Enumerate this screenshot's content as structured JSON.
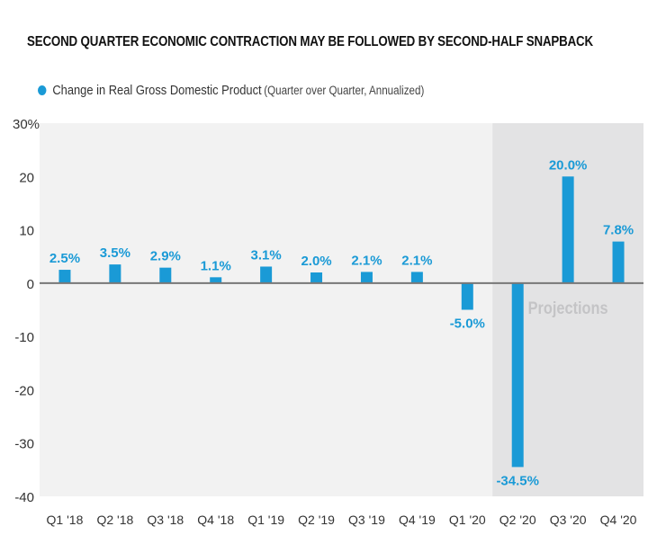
{
  "chart_data": {
    "type": "bar",
    "title": "SECOND QUARTER ECONOMIC CONTRACTION MAY BE FOLLOWED BY SECOND-HALF SNAPBACK",
    "legend": {
      "position": "top-left",
      "entries": [
        {
          "name": "Change in Real Gross Domestic Product",
          "note": "(Quarter over Quarter, Annualized)"
        }
      ]
    },
    "categories": [
      "Q1 '18",
      "Q2 '18",
      "Q3 '18",
      "Q4 '18",
      "Q1 '19",
      "Q2 '19",
      "Q3 '19",
      "Q4 '19",
      "Q1 '20",
      "Q2 '20",
      "Q3 '20",
      "Q4 '20"
    ],
    "series": [
      {
        "name": "Change in Real Gross Domestic Product",
        "values": [
          2.5,
          3.5,
          2.9,
          1.1,
          3.1,
          2.0,
          2.1,
          2.1,
          -5.0,
          -34.5,
          20.0,
          7.8
        ]
      }
    ],
    "data_labels": [
      "2.5%",
      "3.5%",
      "2.9%",
      "1.1%",
      "3.1%",
      "2.0%",
      "2.1%",
      "2.1%",
      "-5.0%",
      "-34.5%",
      "20.0%",
      "7.8%"
    ],
    "yticks": [
      30,
      20,
      10,
      0,
      -10,
      -20,
      -30,
      -40
    ],
    "ytick_labels": [
      "30%",
      "20",
      "10",
      "0",
      "-10",
      "-20",
      "-30",
      "-40"
    ],
    "ylim": [
      -40,
      30
    ],
    "grid": false,
    "shaded_region": {
      "label": "Projections",
      "categories": [
        "Q2 '20",
        "Q3 '20",
        "Q4 '20"
      ]
    },
    "colors": {
      "bar": "#1a9ad6",
      "plot_bg": "#f2f2f2",
      "projection_bg": "#e3e3e4",
      "zero_line": "#777777"
    }
  }
}
